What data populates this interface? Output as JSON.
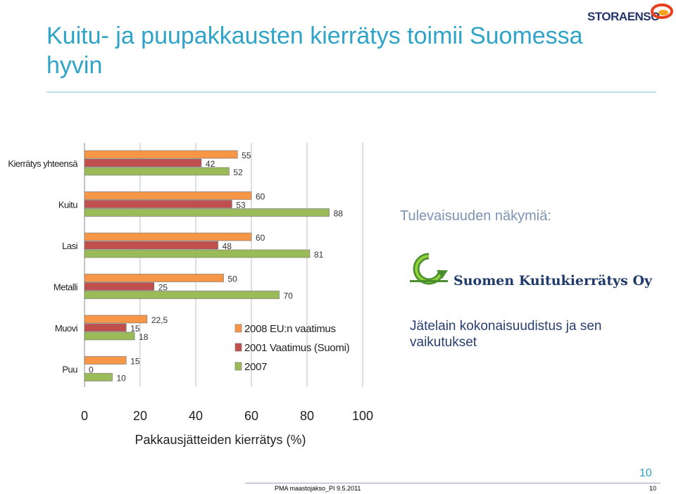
{
  "slide": {
    "title": "Kuitu- ja puupakkausten kierrätys toimii Suomessa hyvin",
    "logo_text": "STORAENSO",
    "future_heading": "Tulevaisuuden näkymiä:",
    "company_name": "Suomen Kuitukierrätys Oy",
    "law_text": "Jätelain kokonaisuudistus ja sen vaikutukset",
    "footer_text": "PMA maastojakso_PI  9.5.2011",
    "page_number_large": "10",
    "page_number_small": "10"
  },
  "chart_data": {
    "type": "bar",
    "orientation": "horizontal",
    "categories": [
      "Kierrätys yhteensä",
      "Kuitu",
      "Lasi",
      "Metalli",
      "Muovi",
      "Puu"
    ],
    "series": [
      {
        "name": "2008 EU:n vaatimus",
        "color": "#f79646",
        "values": [
          55,
          60,
          60,
          50,
          22.5,
          15
        ]
      },
      {
        "name": "2001 Vaatimus (Suomi)",
        "color": "#c0504d",
        "values": [
          42,
          53,
          48,
          25,
          15,
          0
        ]
      },
      {
        "name": "2007",
        "color": "#9bbb59",
        "values": [
          52,
          88,
          81,
          70,
          18,
          10
        ]
      }
    ],
    "value_labels": [
      [
        "55",
        "60",
        "60",
        "50",
        "22,5",
        "15"
      ],
      [
        "42",
        "53",
        "48",
        "25",
        "15",
        "0"
      ],
      [
        "52",
        "88",
        "81",
        "70",
        "18",
        "10"
      ]
    ],
    "xlim": [
      0,
      100
    ],
    "xticks": [
      "0",
      "20",
      "40",
      "60",
      "80",
      "100"
    ],
    "xlabel": "Pakkausjätteiden kierrätys (%)",
    "grid": true,
    "legend_position": "inside-bottom-right"
  }
}
